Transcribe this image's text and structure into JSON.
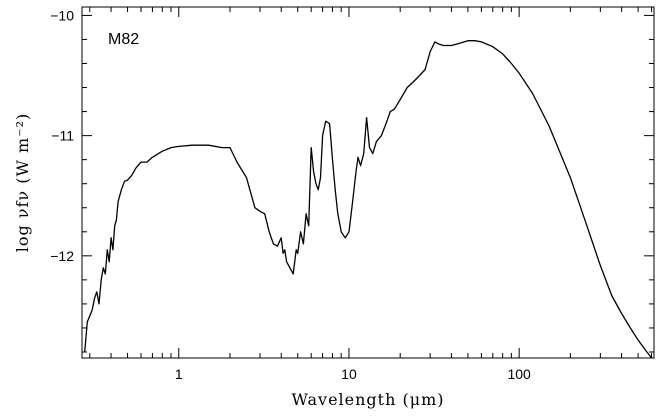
{
  "chart_data": {
    "type": "line",
    "annotation": "M82",
    "xlabel": "Wavelength (μm)",
    "ylabel": "log νfν (W m⁻²)",
    "x_scale": "log",
    "xlim": [
      0.27,
      620
    ],
    "ylim": [
      -12.85,
      -9.93
    ],
    "x_ticks": [
      {
        "value": 1,
        "label": "1"
      },
      {
        "value": 10,
        "label": "10"
      },
      {
        "value": 100,
        "label": "100"
      }
    ],
    "y_ticks": [
      {
        "value": -10,
        "label": "−10"
      },
      {
        "value": -11,
        "label": "−11"
      },
      {
        "value": -12,
        "label": "−12"
      }
    ],
    "grid": false,
    "legend": "none",
    "series": [
      {
        "color": "#000000",
        "x": [
          0.28,
          0.29,
          0.3,
          0.31,
          0.32,
          0.33,
          0.34,
          0.35,
          0.36,
          0.37,
          0.38,
          0.39,
          0.4,
          0.41,
          0.42,
          0.43,
          0.44,
          0.46,
          0.48,
          0.5,
          0.53,
          0.56,
          0.6,
          0.65,
          0.7,
          0.8,
          0.9,
          1.0,
          1.2,
          1.5,
          1.8,
          2.0,
          2.2,
          2.5,
          2.8,
          3.0,
          3.2,
          3.4,
          3.6,
          3.8,
          4.0,
          4.1,
          4.2,
          4.3,
          4.5,
          4.7,
          4.9,
          5.0,
          5.2,
          5.4,
          5.6,
          5.8,
          6.0,
          6.2,
          6.4,
          6.6,
          6.8,
          7.0,
          7.3,
          7.7,
          8.0,
          8.3,
          8.6,
          9.0,
          9.5,
          10.0,
          10.5,
          11.0,
          11.3,
          11.7,
          12.2,
          12.7,
          13.2,
          13.8,
          14.5,
          15.5,
          16.5,
          17.5,
          18.5,
          20,
          22,
          24,
          26,
          28,
          30,
          32,
          34,
          36,
          40,
          45,
          50,
          55,
          60,
          70,
          80,
          90,
          100,
          120,
          150,
          200,
          250,
          300,
          350,
          400,
          450,
          500,
          550,
          600
        ],
        "y": [
          -12.8,
          -12.55,
          -12.5,
          -12.45,
          -12.35,
          -12.3,
          -12.4,
          -12.2,
          -12.1,
          -12.15,
          -11.95,
          -12.05,
          -11.85,
          -11.95,
          -11.75,
          -11.7,
          -11.55,
          -11.45,
          -11.38,
          -11.37,
          -11.33,
          -11.27,
          -11.22,
          -11.22,
          -11.18,
          -11.13,
          -11.1,
          -11.09,
          -11.08,
          -11.08,
          -11.1,
          -11.1,
          -11.22,
          -11.35,
          -11.6,
          -11.63,
          -11.65,
          -11.8,
          -11.9,
          -11.92,
          -11.85,
          -11.98,
          -11.95,
          -12.05,
          -12.1,
          -12.15,
          -11.95,
          -11.98,
          -11.8,
          -11.9,
          -11.65,
          -11.75,
          -11.1,
          -11.3,
          -11.4,
          -11.45,
          -11.35,
          -11.0,
          -10.88,
          -10.9,
          -11.2,
          -11.45,
          -11.65,
          -11.8,
          -11.85,
          -11.8,
          -11.55,
          -11.3,
          -11.18,
          -11.25,
          -11.15,
          -10.85,
          -11.1,
          -11.15,
          -11.05,
          -11.0,
          -10.9,
          -10.8,
          -10.78,
          -10.7,
          -10.6,
          -10.55,
          -10.5,
          -10.45,
          -10.3,
          -10.22,
          -10.24,
          -10.25,
          -10.25,
          -10.23,
          -10.21,
          -10.21,
          -10.22,
          -10.26,
          -10.32,
          -10.4,
          -10.48,
          -10.65,
          -10.92,
          -11.35,
          -11.75,
          -12.08,
          -12.33,
          -12.48,
          -12.6,
          -12.7,
          -12.78,
          -12.85
        ]
      }
    ]
  }
}
